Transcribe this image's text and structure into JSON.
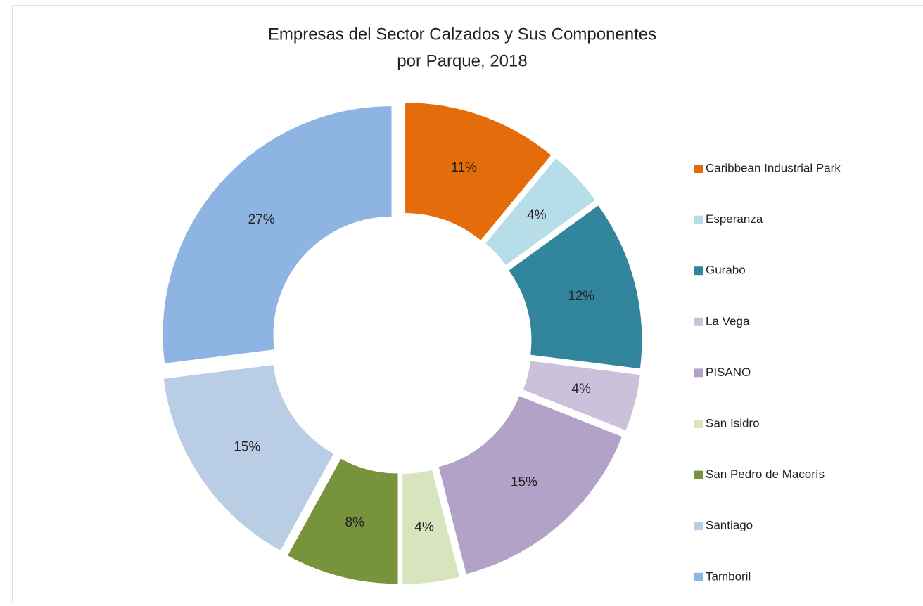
{
  "chart_data": {
    "type": "donut",
    "title": [
      "Empresas del Sector Calzados y Sus Componentes",
      "por Parque, 2018"
    ],
    "categories": [
      "Caribbean Industrial Park",
      "Esperanza",
      "Gurabo",
      "La Vega",
      "PISANO",
      "San Isidro",
      "San Pedro de Macorís",
      "Santiago",
      "Tamboril"
    ],
    "values": [
      11,
      4,
      12,
      4,
      15,
      4,
      8,
      15,
      27
    ],
    "value_labels": [
      "11%",
      "4%",
      "12%",
      "4%",
      "15%",
      "4%",
      "8%",
      "15%",
      "27%"
    ],
    "colors": [
      "#e46c0a",
      "#b7dde8",
      "#31859c",
      "#ccc1da",
      "#b3a2c7",
      "#d7e4bd",
      "#77933c",
      "#b9cde5",
      "#8eb4e3"
    ],
    "legend": "right"
  }
}
